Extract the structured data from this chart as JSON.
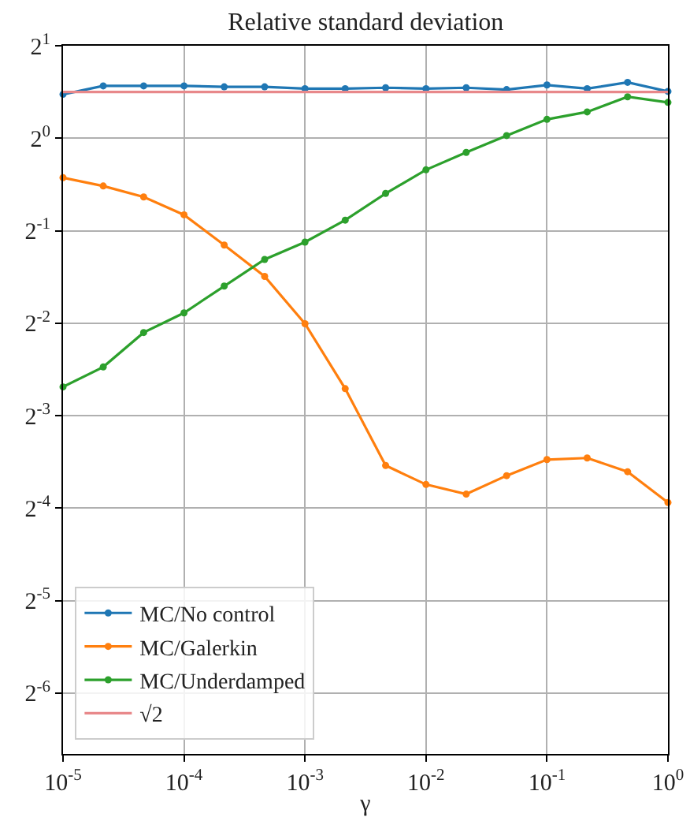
{
  "chart_data": {
    "type": "line",
    "title": "Relative standard deviation",
    "xlabel": "γ",
    "log": "xy",
    "x": [
      1e-05,
      2.15e-05,
      4.64e-05,
      0.0001,
      0.000215,
      0.000464,
      0.001,
      0.00215,
      0.00464,
      0.01,
      0.0215,
      0.0464,
      0.1,
      0.215,
      0.464,
      1
    ],
    "series": [
      {
        "name": "MC/No control",
        "color": "#1f77b4",
        "values": [
          1.39,
          1.48,
          1.48,
          1.48,
          1.47,
          1.47,
          1.45,
          1.45,
          1.46,
          1.45,
          1.46,
          1.44,
          1.49,
          1.45,
          1.52,
          1.42
        ]
      },
      {
        "name": "MC/Galerkin",
        "color": "#ff7f0e",
        "values": [
          0.744,
          0.699,
          0.644,
          0.563,
          0.449,
          0.355,
          0.249,
          0.153,
          0.086,
          0.0746,
          0.0694,
          0.0797,
          0.0899,
          0.091,
          0.0821,
          0.0652
        ]
      },
      {
        "name": "MC/Underdamped",
        "color": "#2ca02c",
        "values": [
          0.155,
          0.18,
          0.233,
          0.27,
          0.33,
          0.403,
          0.459,
          0.541,
          0.661,
          0.789,
          0.899,
          1.02,
          1.152,
          1.218,
          1.364,
          1.308
        ]
      },
      {
        "name": "√2",
        "color": "#e8888a",
        "x": [
          1e-05,
          1
        ],
        "values": [
          1.414,
          1.414
        ],
        "marker": "none"
      }
    ],
    "marker": "circle",
    "line_style": "solid",
    "grid": true,
    "legend": "bottom left",
    "xlim": [
      1e-05,
      1
    ],
    "ylim": [
      0.0099,
      2
    ],
    "xticks": [
      {
        "value": 1e-05,
        "label": "10$^{-5}$"
      },
      {
        "value": 0.0001,
        "label": "10$^{-4}$"
      },
      {
        "value": 0.001,
        "label": "10$^{-3}$"
      },
      {
        "value": 0.01,
        "label": "10$^{-2}$"
      },
      {
        "value": 0.1,
        "label": "10$^{-1}$"
      },
      {
        "value": 1,
        "label": "10$^{0}$"
      }
    ],
    "yticks": [
      {
        "value": 0.015625,
        "label": "2$^{-6}$"
      },
      {
        "value": 0.03125,
        "label": "2$^{-5}$"
      },
      {
        "value": 0.0625,
        "label": "2$^{-4}$"
      },
      {
        "value": 0.125,
        "label": "2$^{-3}$"
      },
      {
        "value": 0.25,
        "label": "2$^{-2}$"
      },
      {
        "value": 0.5,
        "label": "2$^{-1}$"
      },
      {
        "value": 1,
        "label": "2$^{0}$"
      },
      {
        "value": 2,
        "label": "2$^{1}$"
      }
    ]
  }
}
